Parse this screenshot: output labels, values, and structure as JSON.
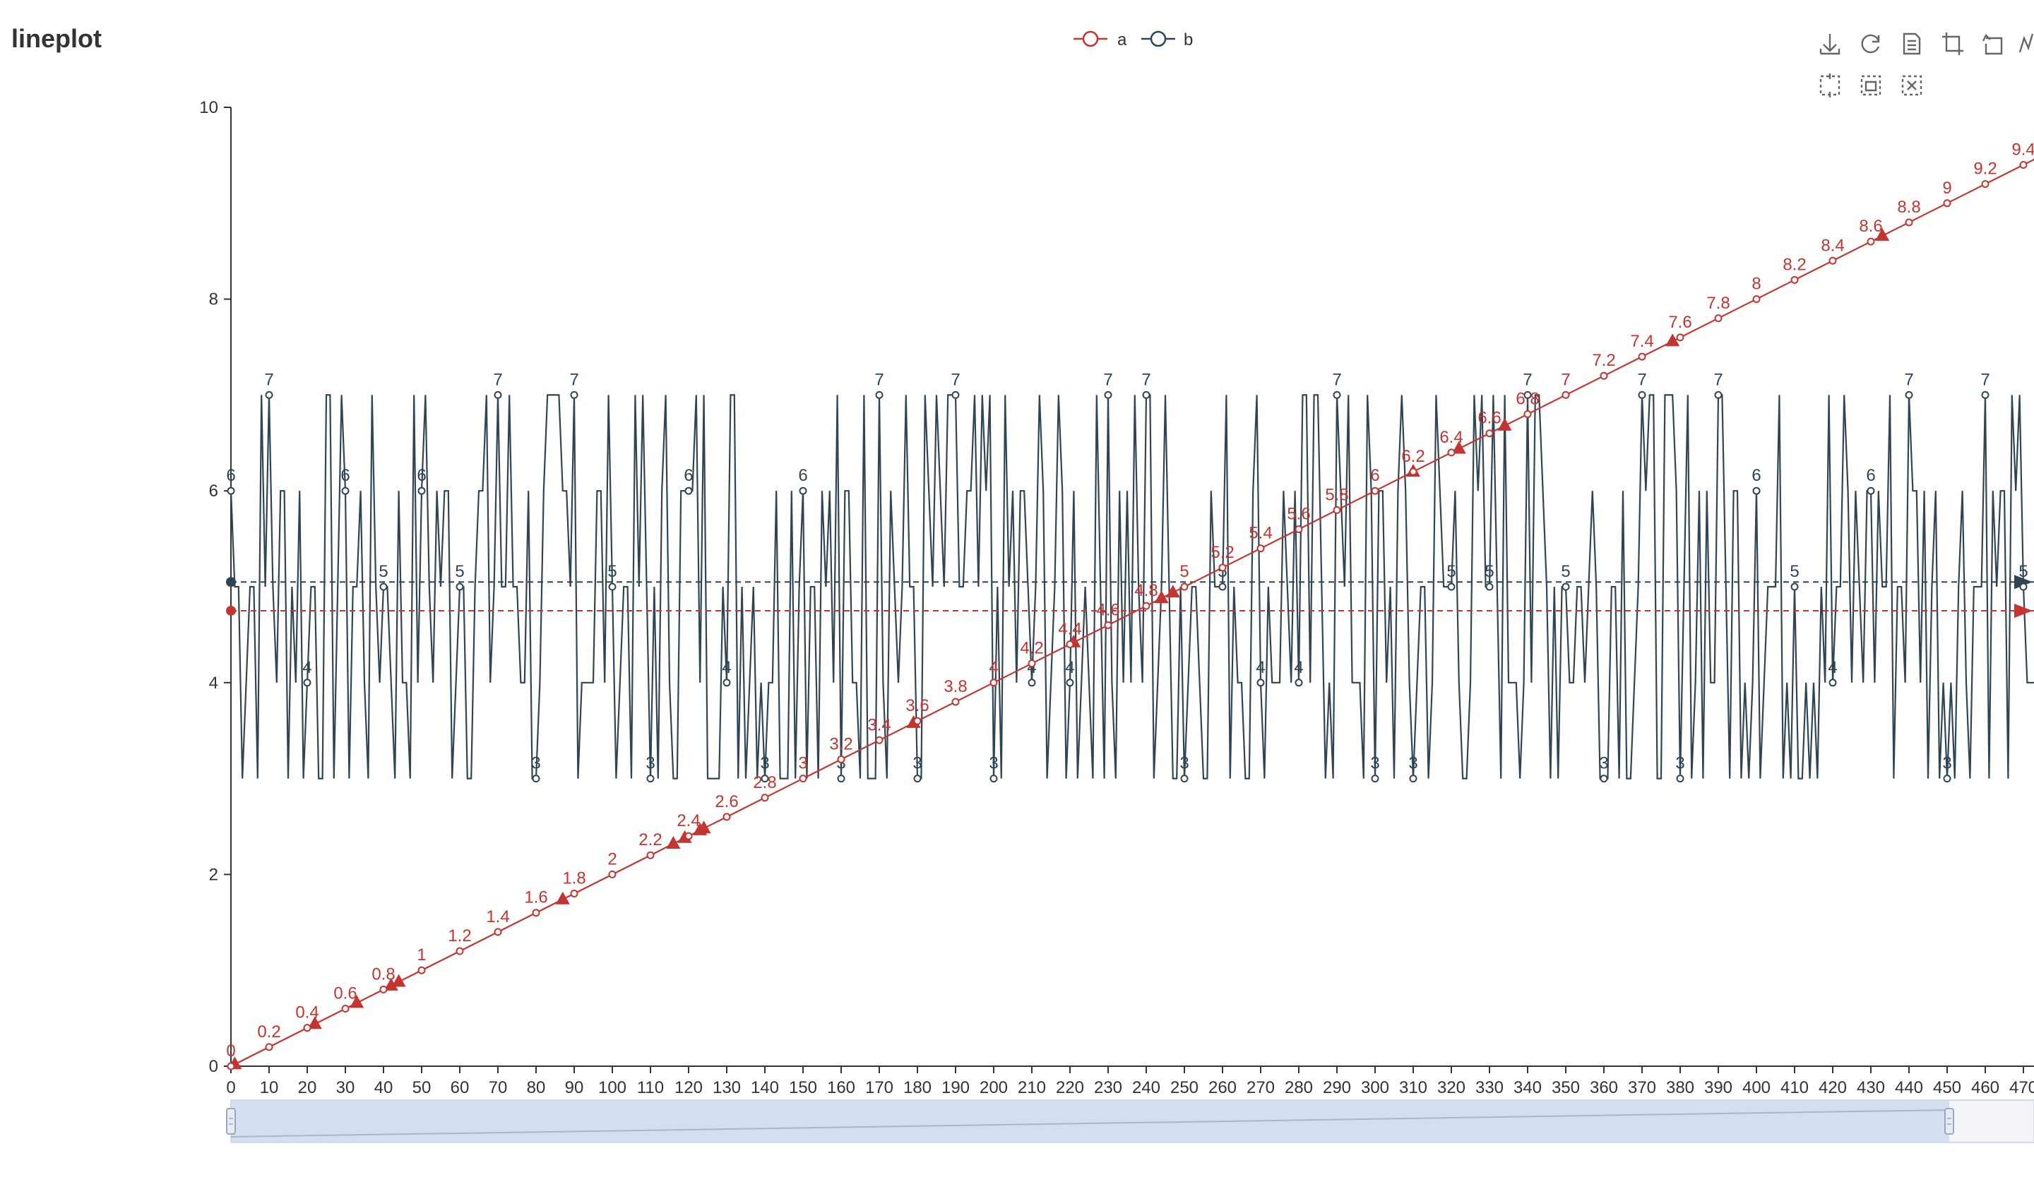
{
  "page": {
    "title": "lineplot"
  },
  "toolbar": {
    "tools": [
      "download-icon",
      "refresh-icon",
      "data-view-icon",
      "zoom-rect-icon",
      "zoom-back-icon",
      "line-chart-icon",
      "brush-rect-icon",
      "brush-keep-icon",
      "brush-clear-icon"
    ]
  },
  "colors": {
    "a": "#c23531",
    "b": "#2f4554",
    "axis": "#333333",
    "dataZoomFill": "#d2dbee"
  },
  "chart_data": {
    "type": "line",
    "title": "lineplot",
    "xlabel": "",
    "ylabel": "",
    "xlim": [
      0,
      475
    ],
    "ylim": [
      0,
      10
    ],
    "xticks": [
      "0",
      "10",
      "20",
      "30",
      "40",
      "50",
      "60",
      "70",
      "80",
      "90",
      "100",
      "110",
      "120",
      "130",
      "140",
      "150",
      "160",
      "170",
      "180",
      "190",
      "200",
      "210",
      "220",
      "230",
      "240",
      "250",
      "260",
      "270",
      "280",
      "290",
      "300",
      "310",
      "320",
      "330",
      "340",
      "350",
      "360",
      "370",
      "380",
      "390",
      "400",
      "410",
      "420",
      "430",
      "440",
      "450",
      "460",
      "470"
    ],
    "yticks": [
      "0",
      "2",
      "4",
      "6",
      "8",
      "10"
    ],
    "legend": {
      "position": "top-center",
      "entries": [
        "a",
        "b"
      ]
    },
    "series": [
      {
        "name": "a",
        "color": "#c23531",
        "line": "y = x / 50 (linear, 0 to 9.5)",
        "labels": [
          "0",
          "0.2",
          "0.4",
          "0.6",
          "0.8",
          "1",
          "1.2",
          "1.4",
          "1.6",
          "1.8",
          "2",
          "2.2",
          "2.4",
          "2.6",
          "2.8",
          "3",
          "3.2",
          "3.4",
          "3.6",
          "3.8",
          "4",
          "4.2",
          "4.4",
          "4.6",
          "4.8",
          "5",
          "5.2",
          "5.4",
          "5.6",
          "5.8",
          "6",
          "6.2",
          "6.4",
          "6.6",
          "6.8",
          "7",
          "7.2",
          "7.4",
          "7.6",
          "7.8",
          "8",
          "8.2",
          "8.4",
          "8.6",
          "8.8",
          "9",
          "9.2",
          "9.4"
        ],
        "markPoints_x": [
          1,
          22,
          33,
          42,
          44,
          87,
          116,
          119,
          123,
          124,
          179,
          221,
          244,
          247,
          310,
          322,
          334,
          378,
          433
        ],
        "mean": 4.75
      },
      {
        "name": "b",
        "color": "#2f4554",
        "labeled_points": [
          [
            0,
            "6"
          ],
          [
            10,
            "7"
          ],
          [
            20,
            "4"
          ],
          [
            30,
            "6"
          ],
          [
            40,
            "5"
          ],
          [
            50,
            "6"
          ],
          [
            60,
            "5"
          ],
          [
            70,
            "7"
          ],
          [
            80,
            "3"
          ],
          [
            90,
            "7"
          ],
          [
            100,
            "5"
          ],
          [
            110,
            "3"
          ],
          [
            120,
            "6"
          ],
          [
            130,
            "4"
          ],
          [
            140,
            "3"
          ],
          [
            150,
            "6"
          ],
          [
            160,
            "3"
          ],
          [
            170,
            "7"
          ],
          [
            180,
            "3"
          ],
          [
            190,
            "7"
          ],
          [
            200,
            "3"
          ],
          [
            210,
            "4"
          ],
          [
            220,
            "4"
          ],
          [
            230,
            "7"
          ],
          [
            240,
            "7"
          ],
          [
            250,
            "3"
          ],
          [
            260,
            "5"
          ],
          [
            270,
            "4"
          ],
          [
            280,
            "4"
          ],
          [
            290,
            "7"
          ],
          [
            300,
            "3"
          ],
          [
            310,
            "3"
          ],
          [
            320,
            "5"
          ],
          [
            330,
            "5"
          ],
          [
            340,
            "7"
          ],
          [
            350,
            "5"
          ],
          [
            360,
            "3"
          ],
          [
            370,
            "7"
          ],
          [
            380,
            "3"
          ],
          [
            390,
            "7"
          ],
          [
            400,
            "6"
          ],
          [
            410,
            "5"
          ],
          [
            420,
            "4"
          ],
          [
            430,
            "6"
          ],
          [
            440,
            "7"
          ],
          [
            450,
            "3"
          ],
          [
            460,
            "7"
          ],
          [
            470,
            "5"
          ]
        ],
        "value_range": [
          3,
          7
        ],
        "mean": 5.05
      }
    ]
  }
}
